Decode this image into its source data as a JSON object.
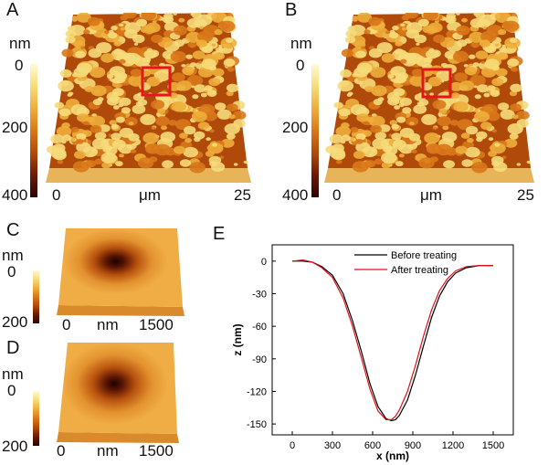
{
  "colors": {
    "colormap": [
      "#fffbd8",
      "#f6dc7a",
      "#eeae3a",
      "#d97819",
      "#b04a0a",
      "#6b1a04",
      "#2a0500"
    ],
    "before_line": "#000000",
    "after_line": "#e0101a",
    "highlight_box": "#e8141c"
  },
  "panels": {
    "A": {
      "letter": "A",
      "unit": "nm",
      "scale_top": "0",
      "scale_mid": "200",
      "scale_bottom": "400",
      "x_start": "0",
      "x_unit": "μm",
      "x_end": "25"
    },
    "B": {
      "letter": "B",
      "unit": "nm",
      "scale_top": "0",
      "scale_mid": "200",
      "scale_bottom": "400",
      "x_start": "0",
      "x_unit": "μm",
      "x_end": "25"
    },
    "C": {
      "letter": "C",
      "unit": "nm",
      "scale_top": "0",
      "scale_bottom": "200",
      "x_start": "0",
      "x_unit": "nm",
      "x_end": "1500"
    },
    "D": {
      "letter": "D",
      "unit": "nm",
      "scale_top": "0",
      "scale_bottom": "200",
      "x_start": "0",
      "x_unit": "nm",
      "x_end": "1500"
    },
    "E": {
      "letter": "E"
    }
  },
  "chart_data": {
    "type": "line",
    "xlabel": "x (nm)",
    "ylabel": "z (nm)",
    "xlim": [
      -150,
      1650
    ],
    "ylim": [
      -160,
      15
    ],
    "xticks": [
      0,
      300,
      600,
      900,
      1200,
      1500
    ],
    "yticks": [
      0,
      -30,
      -60,
      -90,
      -120,
      -150
    ],
    "legend_position": "top-right",
    "grid": false,
    "series": [
      {
        "name": "Before treating",
        "color": "#000000",
        "x": [
          0,
          80,
          150,
          220,
          300,
          380,
          450,
          520,
          580,
          640,
          700,
          740,
          770,
          800,
          860,
          920,
          980,
          1040,
          1100,
          1160,
          1220,
          1300,
          1400,
          1500
        ],
        "y": [
          0,
          0,
          -1,
          -5,
          -13,
          -30,
          -55,
          -85,
          -113,
          -134,
          -145,
          -147,
          -146,
          -142,
          -128,
          -105,
          -78,
          -52,
          -32,
          -19,
          -11,
          -6,
          -4,
          -4
        ]
      },
      {
        "name": "After treating",
        "color": "#e0101a",
        "x": [
          0,
          80,
          150,
          220,
          300,
          380,
          450,
          520,
          580,
          640,
          700,
          740,
          770,
          800,
          860,
          920,
          980,
          1040,
          1100,
          1160,
          1220,
          1300,
          1400,
          1500
        ],
        "y": [
          0,
          1,
          -1,
          -6,
          -15,
          -34,
          -60,
          -91,
          -118,
          -138,
          -146,
          -146,
          -143,
          -137,
          -120,
          -96,
          -69,
          -45,
          -27,
          -16,
          -9,
          -5,
          -4,
          -4
        ]
      }
    ]
  }
}
